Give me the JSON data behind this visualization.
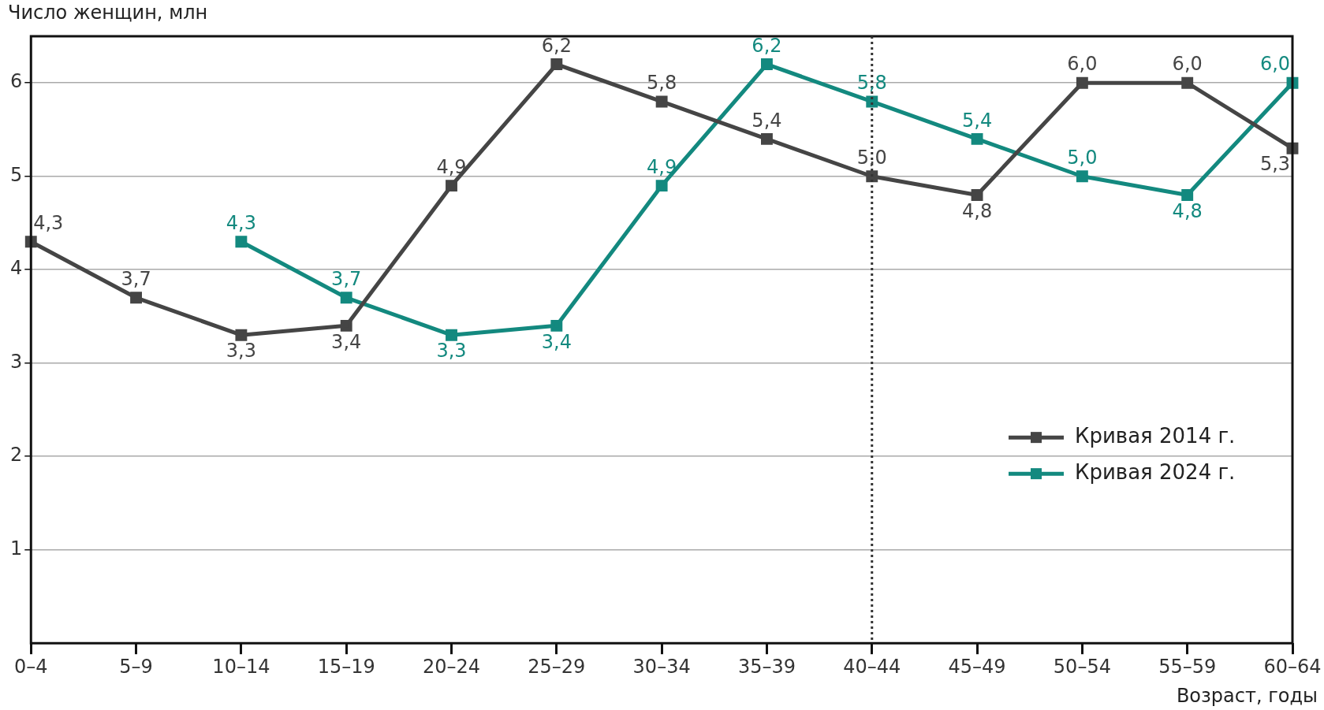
{
  "chart_data": {
    "type": "line",
    "ylabel": "Число женщин, млн",
    "xlabel": "Возраст, годы",
    "categories": [
      "0–4",
      "5–9",
      "10–14",
      "15–19",
      "20–24",
      "25–29",
      "30–34",
      "35–39",
      "40–44",
      "45–49",
      "50–54",
      "55–59",
      "60–64"
    ],
    "series": [
      {
        "name": "Кривая 2014 г.",
        "color": "#454545",
        "values": [
          4.3,
          3.7,
          3.3,
          3.4,
          4.9,
          6.2,
          5.8,
          5.4,
          5.0,
          4.8,
          6.0,
          6.0,
          5.3
        ],
        "value_labels": [
          "4,3",
          "3,7",
          "3,3",
          "3,4",
          "4,9",
          "6,2",
          "5,8",
          "5,4",
          "5,0",
          "4,8",
          "6,0",
          "6,0",
          "5,3"
        ]
      },
      {
        "name": "Кривая 2024 г.",
        "color": "#13897f",
        "values": [
          null,
          null,
          4.3,
          3.7,
          3.3,
          3.4,
          4.9,
          6.2,
          5.8,
          5.4,
          5.0,
          4.8,
          6.0
        ],
        "value_labels": [
          null,
          null,
          "4,3",
          "3,7",
          "3,3",
          "3,4",
          "4,9",
          "6,2",
          "5,8",
          "5,4",
          "5,0",
          "4,8",
          "6,0"
        ]
      }
    ],
    "ylim": [
      0,
      6.5
    ],
    "yticks": [
      1,
      2,
      3,
      4,
      5,
      6
    ],
    "grid": "y",
    "legend": "right",
    "marker": "square",
    "line_style": "solid",
    "ref_lines": [
      {
        "axis": "x",
        "value": "40–44",
        "line_style": "dotted",
        "color": "#333333"
      }
    ]
  }
}
